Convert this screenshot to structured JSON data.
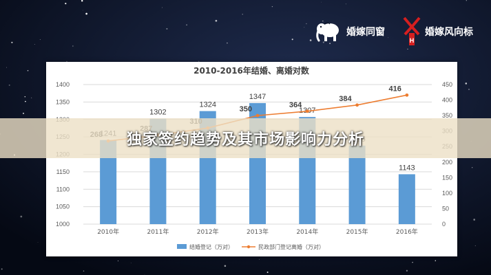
{
  "page": {
    "overlay_title": "独家签约趋势及其市场影响力分析",
    "brands": [
      {
        "name": "婚嫁同窗",
        "icon": "elephant-logo-icon"
      },
      {
        "name": "婚嫁风向标",
        "icon": "windmill-logo-icon"
      }
    ],
    "colors": {
      "background": "#0a1022",
      "banner": "#ece0c6"
    }
  },
  "chart_data": {
    "type": "bar",
    "title": "2010-2016年结婚、离婚对数",
    "categories": [
      "2010年",
      "2011年",
      "2012年",
      "2013年",
      "2014年",
      "2015年",
      "2016年"
    ],
    "series": [
      {
        "name": "结婚登记（万对）",
        "type": "bar",
        "axis": "left",
        "color": "#5b9bd5",
        "values": [
          1241,
          1302,
          1324,
          1347,
          1307,
          1225,
          1143
        ],
        "labels": [
          "1241",
          "1302",
          "1324",
          "1347",
          "1307",
          "1225",
          "1143"
        ]
      },
      {
        "name": "民政部门登记离婚（万对）",
        "type": "line",
        "axis": "right",
        "color": "#ed7d31",
        "values": [
          268,
          287,
          310,
          350,
          364,
          384,
          416
        ],
        "labels": [
          "268",
          "287",
          "310",
          "350",
          "364",
          "384",
          "416"
        ]
      }
    ],
    "y_left": {
      "min": 1000,
      "max": 1400,
      "step": 50,
      "ticks": [
        "1000",
        "1050",
        "1100",
        "1150",
        "1200",
        "1250",
        "1300",
        "1350",
        "1400"
      ]
    },
    "y_right": {
      "min": 0,
      "max": 450,
      "step": 50,
      "ticks": [
        "0",
        "50",
        "100",
        "150",
        "200",
        "250",
        "300",
        "350",
        "400",
        "450"
      ]
    },
    "grid": true,
    "legend_position": "bottom"
  }
}
